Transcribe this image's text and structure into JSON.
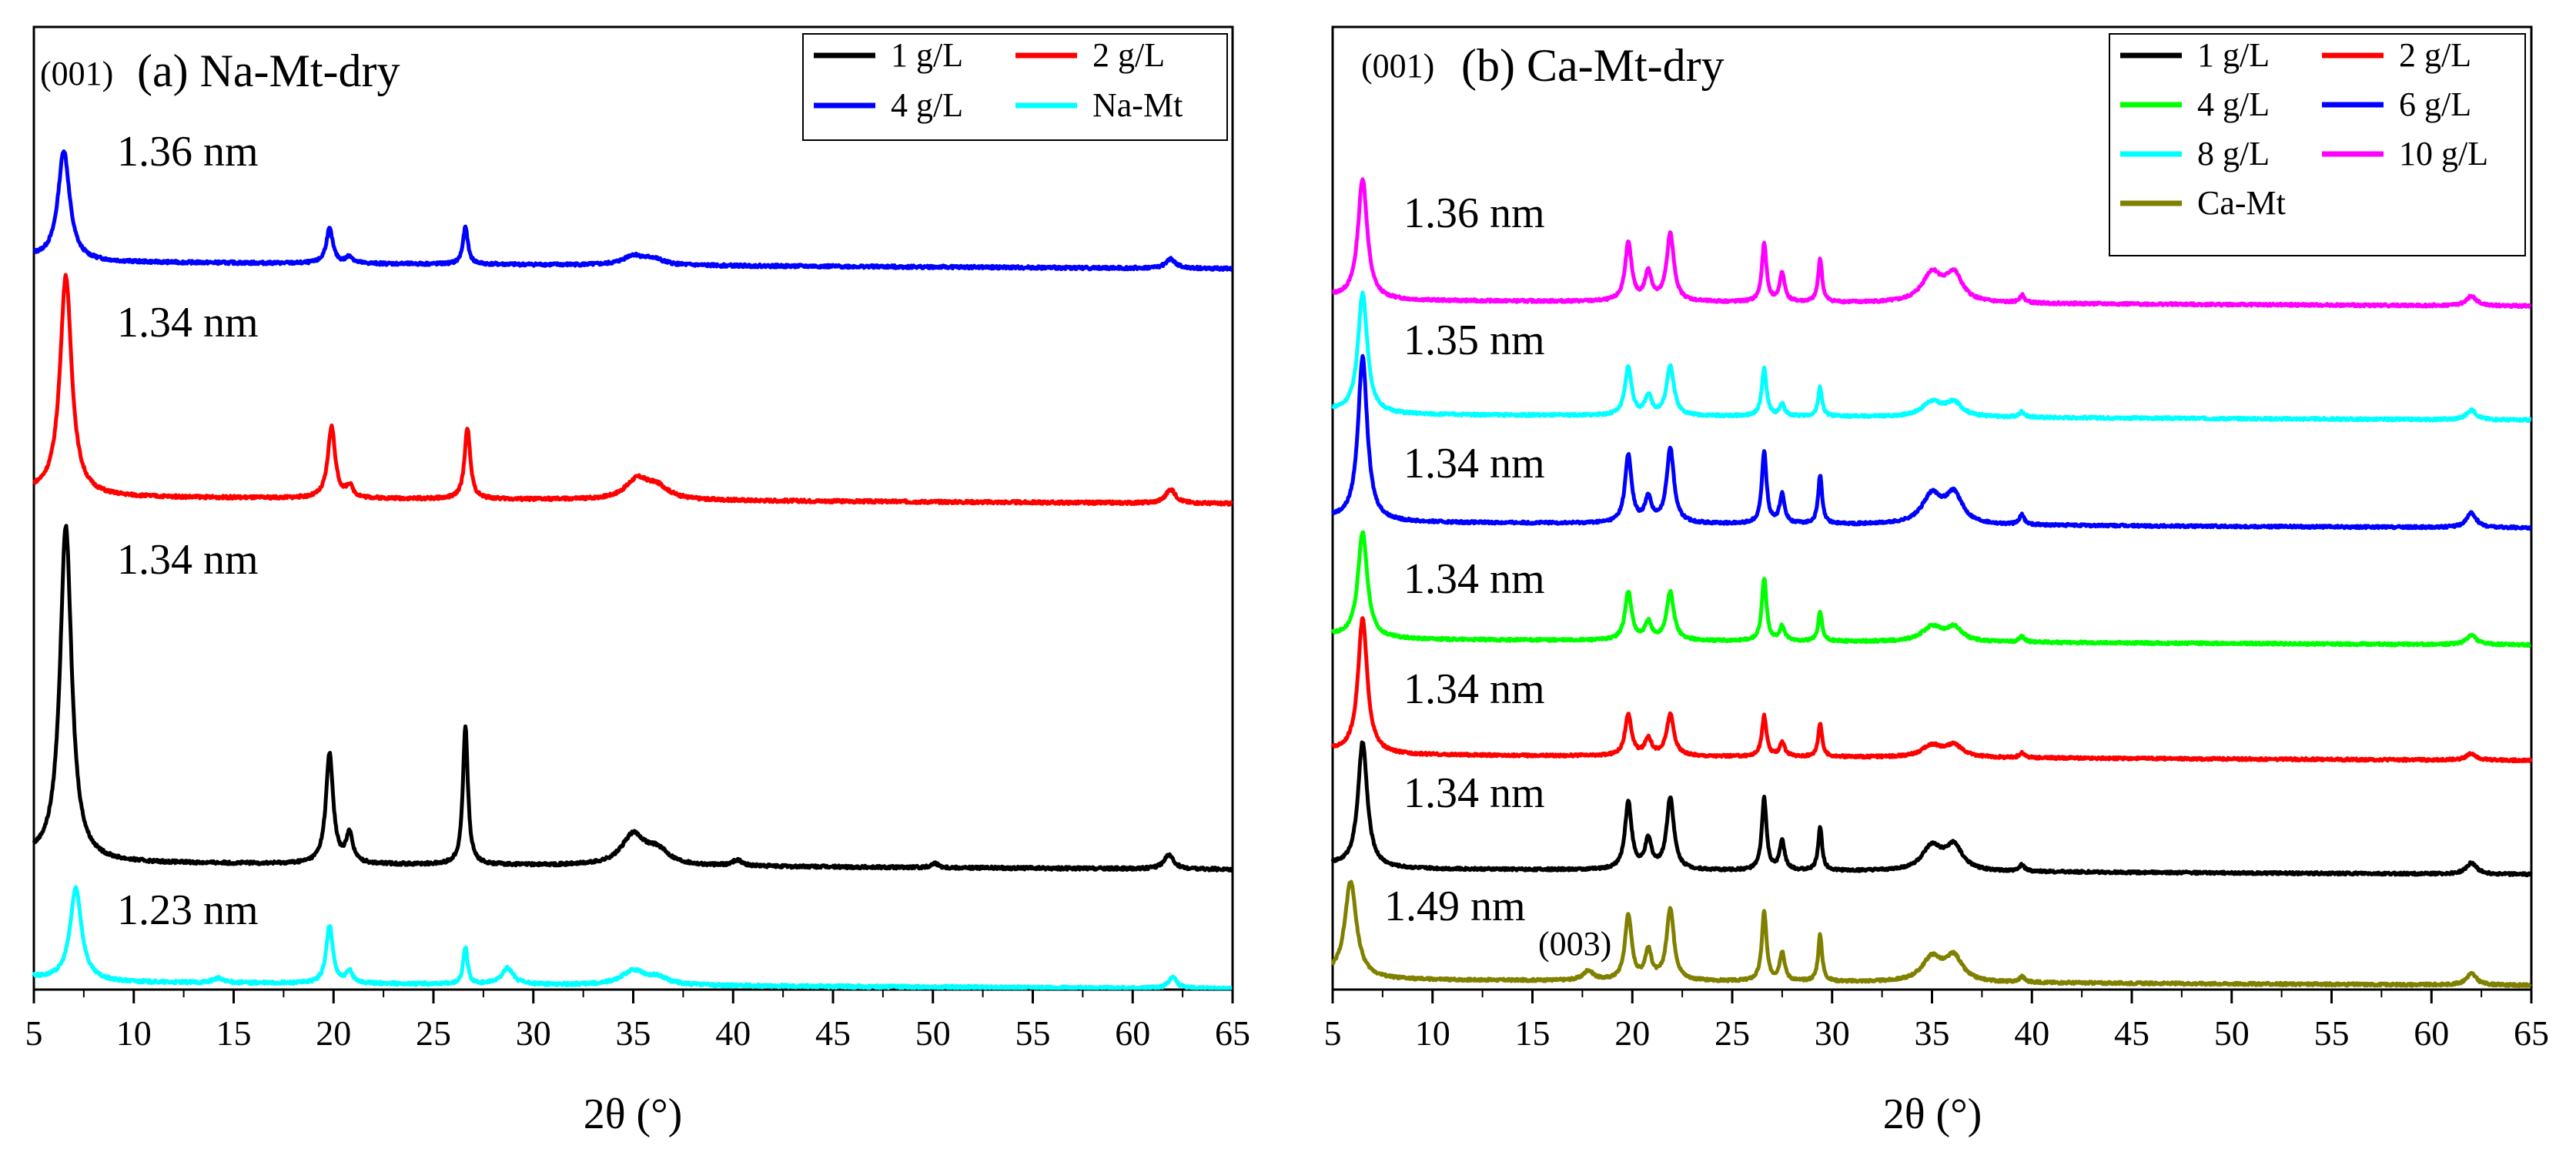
{
  "figure": {
    "colors": {
      "black": "#000000",
      "red": "#ff0000",
      "blue": "#0000ff",
      "cyan": "#00ffff",
      "green": "#00ff00",
      "magenta": "#ff00ff",
      "olive": "#808000"
    }
  },
  "chart_data": [
    {
      "type": "line",
      "id": "a",
      "title": "(a) Na-Mt-dry",
      "peak_label": "(001)",
      "xlabel": "2θ (°)",
      "ylabel": "",
      "xlim": [
        5,
        65
      ],
      "xticks": [
        "5",
        "10",
        "15",
        "20",
        "25",
        "30",
        "35",
        "40",
        "45",
        "50",
        "55",
        "60",
        "65"
      ],
      "y_ticks_shown": false,
      "legend_position": "top-right",
      "legend_columns": 2,
      "legend": [
        "1 g/L",
        "2 g/L",
        "4 g/L",
        "Na-Mt"
      ],
      "series": [
        {
          "name": "4 g/L",
          "color": "#0000ff",
          "offset": 3,
          "spacing": "1.36 nm",
          "peaks": [
            [
              6.5,
              0.95,
              0.35
            ],
            [
              19.8,
              0.3,
              0.2
            ],
            [
              20.8,
              0.06,
              0.2
            ],
            [
              26.6,
              0.32,
              0.15
            ],
            [
              35.0,
              0.08,
              0.6
            ],
            [
              36.0,
              0.05,
              0.6
            ],
            [
              61.9,
              0.08,
              0.3
            ]
          ]
        },
        {
          "name": "2 g/L",
          "color": "#ff0000",
          "offset": 2,
          "spacing": "1.34 nm",
          "peaks": [
            [
              6.6,
              1.9,
              0.35
            ],
            [
              19.9,
              0.62,
              0.22
            ],
            [
              20.8,
              0.1,
              0.2
            ],
            [
              26.7,
              0.62,
              0.17
            ],
            [
              35.2,
              0.17,
              0.7
            ],
            [
              36.2,
              0.1,
              0.7
            ],
            [
              61.9,
              0.12,
              0.3
            ]
          ]
        },
        {
          "name": "1 g/L",
          "color": "#000000",
          "offset": 1,
          "spacing": "1.34 nm",
          "peaks": [
            [
              6.6,
              2.9,
              0.35
            ],
            [
              19.8,
              0.95,
              0.22
            ],
            [
              20.8,
              0.25,
              0.2
            ],
            [
              26.6,
              1.2,
              0.15
            ],
            [
              35.0,
              0.26,
              0.7
            ],
            [
              36.2,
              0.12,
              0.7
            ],
            [
              40.2,
              0.05,
              0.3
            ],
            [
              50.1,
              0.04,
              0.2
            ],
            [
              61.8,
              0.12,
              0.3
            ]
          ]
        },
        {
          "name": "Na-Mt",
          "color": "#00ffff",
          "offset": 0,
          "spacing": "1.23 nm",
          "peaks": [
            [
              7.1,
              0.8,
              0.35
            ],
            [
              14.2,
              0.04,
              0.3
            ],
            [
              19.8,
              0.5,
              0.2
            ],
            [
              20.8,
              0.1,
              0.2
            ],
            [
              26.6,
              0.32,
              0.13
            ],
            [
              28.7,
              0.14,
              0.35
            ],
            [
              35.0,
              0.12,
              0.7
            ],
            [
              36.2,
              0.06,
              0.7
            ],
            [
              62.0,
              0.1,
              0.25
            ]
          ]
        }
      ]
    },
    {
      "type": "line",
      "id": "b",
      "title": "(b) Ca-Mt-dry",
      "peak_label": "(001)",
      "secondary_peak_label": "(003)",
      "xlabel": "2θ (°)",
      "ylabel": "",
      "xlim": [
        5,
        65
      ],
      "xticks": [
        "5",
        "10",
        "15",
        "20",
        "25",
        "30",
        "35",
        "40",
        "45",
        "50",
        "55",
        "60",
        "65"
      ],
      "y_ticks_shown": false,
      "legend_position": "top-right",
      "legend_columns": 2,
      "legend": [
        "1 g/L",
        "2 g/L",
        "4 g/L",
        "6 g/L",
        "8 g/L",
        "10 g/L",
        "Ca-Mt"
      ],
      "series": [
        {
          "name": "10 g/L",
          "color": "#ff00ff",
          "offset": 6,
          "spacing": "1.36 nm",
          "peaks": [
            [
              6.5,
              1.25,
              0.28
            ],
            [
              19.8,
              0.6,
              0.2
            ],
            [
              20.8,
              0.3,
              0.2
            ],
            [
              21.9,
              0.7,
              0.22
            ],
            [
              26.6,
              0.6,
              0.14
            ],
            [
              27.5,
              0.3,
              0.15
            ],
            [
              29.4,
              0.45,
              0.12
            ],
            [
              35.0,
              0.3,
              0.6
            ],
            [
              36.1,
              0.28,
              0.5
            ],
            [
              39.5,
              0.08,
              0.15
            ],
            [
              62.0,
              0.1,
              0.3
            ]
          ]
        },
        {
          "name": "8 g/L",
          "color": "#00ffff",
          "offset": 5,
          "spacing": "1.35 nm",
          "peaks": [
            [
              6.5,
              1.25,
              0.28
            ],
            [
              19.8,
              0.5,
              0.2
            ],
            [
              20.8,
              0.2,
              0.2
            ],
            [
              21.9,
              0.52,
              0.22
            ],
            [
              26.6,
              0.5,
              0.14
            ],
            [
              27.5,
              0.12,
              0.15
            ],
            [
              29.4,
              0.3,
              0.12
            ],
            [
              35.0,
              0.15,
              0.6
            ],
            [
              36.1,
              0.14,
              0.5
            ],
            [
              39.5,
              0.06,
              0.15
            ],
            [
              62.0,
              0.1,
              0.3
            ]
          ]
        },
        {
          "name": "6 g/L",
          "color": "#0000ff",
          "offset": 4,
          "spacing": "1.34 nm",
          "peaks": [
            [
              6.5,
              1.7,
              0.28
            ],
            [
              19.8,
              0.7,
              0.2
            ],
            [
              20.8,
              0.25,
              0.2
            ],
            [
              21.9,
              0.78,
              0.22
            ],
            [
              26.6,
              0.75,
              0.14
            ],
            [
              27.5,
              0.3,
              0.15
            ],
            [
              29.4,
              0.5,
              0.12
            ],
            [
              35.0,
              0.3,
              0.6
            ],
            [
              36.1,
              0.3,
              0.5
            ],
            [
              39.5,
              0.1,
              0.15
            ],
            [
              62.0,
              0.15,
              0.3
            ]
          ]
        },
        {
          "name": "4 g/L",
          "color": "#00ff00",
          "offset": 3,
          "spacing": "1.34 nm",
          "peaks": [
            [
              6.5,
              1.1,
              0.28
            ],
            [
              19.8,
              0.5,
              0.2
            ],
            [
              20.8,
              0.18,
              0.2
            ],
            [
              21.9,
              0.5,
              0.22
            ],
            [
              26.6,
              0.65,
              0.14
            ],
            [
              27.5,
              0.15,
              0.15
            ],
            [
              29.4,
              0.3,
              0.12
            ],
            [
              35.0,
              0.15,
              0.6
            ],
            [
              36.1,
              0.14,
              0.5
            ],
            [
              39.5,
              0.06,
              0.15
            ],
            [
              62.0,
              0.1,
              0.3
            ]
          ]
        },
        {
          "name": "2 g/L",
          "color": "#ff0000",
          "offset": 2,
          "spacing": "1.34 nm",
          "peaks": [
            [
              6.5,
              1.4,
              0.28
            ],
            [
              19.8,
              0.42,
              0.2
            ],
            [
              20.8,
              0.18,
              0.2
            ],
            [
              21.9,
              0.43,
              0.22
            ],
            [
              26.6,
              0.42,
              0.14
            ],
            [
              27.5,
              0.15,
              0.15
            ],
            [
              29.4,
              0.35,
              0.12
            ],
            [
              35.0,
              0.12,
              0.6
            ],
            [
              36.1,
              0.12,
              0.5
            ],
            [
              39.5,
              0.05,
              0.15
            ],
            [
              62.0,
              0.07,
              0.3
            ]
          ]
        },
        {
          "name": "1 g/L",
          "color": "#000000",
          "offset": 1,
          "spacing": "1.34 nm",
          "peaks": [
            [
              6.5,
              1.3,
              0.28
            ],
            [
              19.8,
              0.7,
              0.2
            ],
            [
              20.8,
              0.3,
              0.2
            ],
            [
              21.9,
              0.75,
              0.22
            ],
            [
              26.6,
              0.75,
              0.14
            ],
            [
              27.5,
              0.3,
              0.15
            ],
            [
              29.4,
              0.45,
              0.12
            ],
            [
              35.0,
              0.25,
              0.6
            ],
            [
              36.1,
              0.25,
              0.5
            ],
            [
              39.5,
              0.07,
              0.15
            ],
            [
              62.0,
              0.12,
              0.3
            ]
          ]
        },
        {
          "name": "Ca-Mt",
          "color": "#808000",
          "offset": 0,
          "spacing": "1.49 nm",
          "peaks": [
            [
              5.9,
              1.0,
              0.35
            ],
            [
              17.8,
              0.1,
              0.3
            ],
            [
              19.8,
              0.68,
              0.2
            ],
            [
              20.8,
              0.3,
              0.2
            ],
            [
              21.9,
              0.75,
              0.22
            ],
            [
              26.6,
              0.72,
              0.14
            ],
            [
              27.5,
              0.3,
              0.15
            ],
            [
              29.4,
              0.48,
              0.12
            ],
            [
              35.0,
              0.25,
              0.6
            ],
            [
              36.1,
              0.25,
              0.5
            ],
            [
              39.5,
              0.06,
              0.15
            ],
            [
              62.0,
              0.12,
              0.3
            ]
          ]
        }
      ]
    }
  ]
}
